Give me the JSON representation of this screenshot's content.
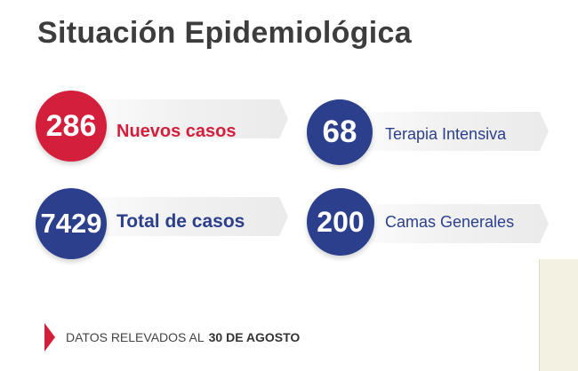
{
  "title": "Situación Epidemiológica",
  "stats": [
    {
      "value": "286",
      "label": "Nuevos casos",
      "color": "#d41f3c"
    },
    {
      "value": "7429",
      "label": "Total de casos",
      "color": "#2b3f8c"
    },
    {
      "value": "68",
      "label": "Terapia Intensiva",
      "color": "#2b3f8c"
    },
    {
      "value": "200",
      "label": "Camas Generales",
      "color": "#2b3f8c"
    }
  ],
  "footer": {
    "prefix": "DATOS RELEVADOS AL",
    "date": "30 DE AGOSTO"
  },
  "colors": {
    "red": "#d41f3c",
    "blue": "#2b3f8c",
    "title": "#3d3d3d"
  }
}
